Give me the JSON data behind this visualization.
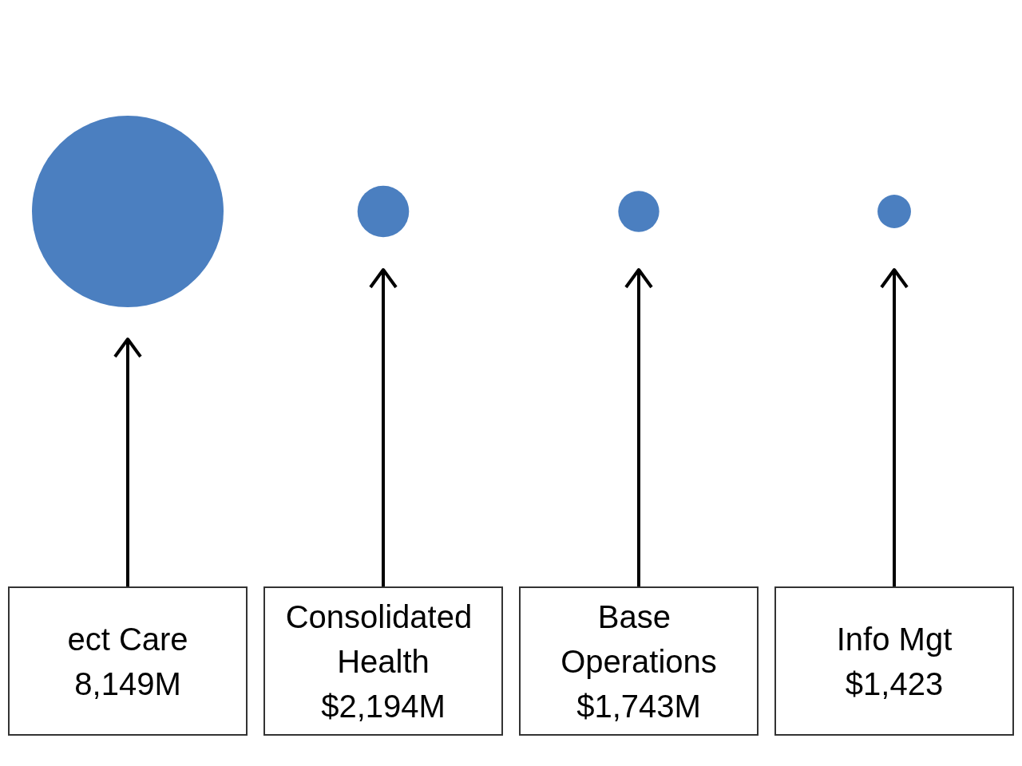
{
  "chart_data": {
    "type": "other",
    "categories": [
      "ect Care",
      "Consolidated Health",
      "Base Operations",
      "Info Mgt"
    ],
    "values": [
      8149,
      2194,
      1743,
      1423
    ],
    "value_labels": [
      "8,149M",
      "$2,194M",
      "$1,743M",
      "$1,423"
    ],
    "color": "#4b7fc0"
  }
}
